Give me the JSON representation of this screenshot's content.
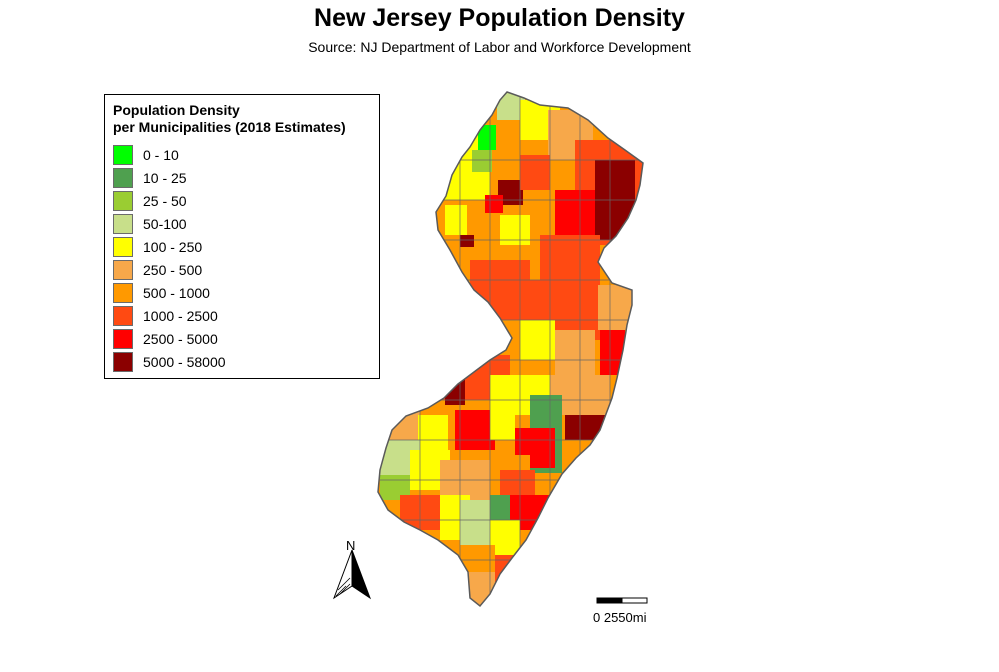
{
  "header": {
    "title": "New Jersey Population Density",
    "subtitle": "Source: NJ Department of Labor and Workforce Development"
  },
  "legend": {
    "title_line1": "Population Density",
    "title_line2": "per Municipalities (2018 Estimates)",
    "items": [
      {
        "label": "0 - 10",
        "color": "#00ff00"
      },
      {
        "label": "10 - 25",
        "color": "#4fa04f"
      },
      {
        "label": "25 - 50",
        "color": "#9acd32"
      },
      {
        "label": "50-100",
        "color": "#c8df8a"
      },
      {
        "label": "100 - 250",
        "color": "#ffff00"
      },
      {
        "label": "250 - 500",
        "color": "#f7a84a"
      },
      {
        "label": "500 - 1000",
        "color": "#ff9900"
      },
      {
        "label": "1000 - 2500",
        "color": "#ff4a12"
      },
      {
        "label": "2500 - 5000",
        "color": "#ff0000"
      },
      {
        "label": "5000 - 58000",
        "color": "#8b0000"
      }
    ]
  },
  "map": {
    "state_outline_color": "#5a5a5a"
  },
  "north_arrow": {
    "label": "N"
  },
  "scale_bar": {
    "label": "0   2550mi"
  }
}
